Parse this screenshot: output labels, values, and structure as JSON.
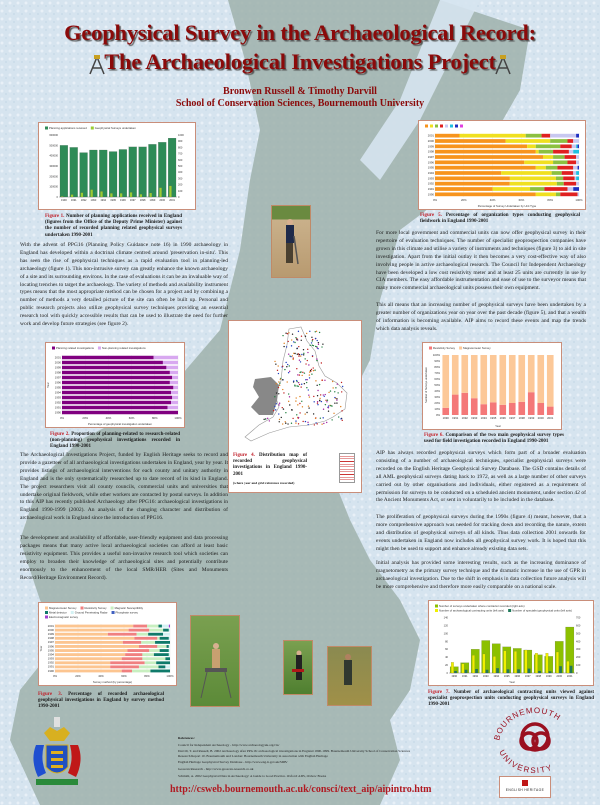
{
  "header": {
    "title_line1": "Geophysical Survey in the Archaeological Record:",
    "title_line2": "The Archaeological Investigations Project",
    "authors": "Bronwen Russell & Timothy Darvill",
    "affiliation": "School of Conservation Sciences, Bournemouth University"
  },
  "left_column": {
    "p1": "With the advent of PPG16 (Planning Policy Guidance note 16) in 1990 archaeology in England has developed within a doctrinal climate centred around 'preservation in-situ'. This has seen the rise of geophysical techniques as a rapid evaluation tool in planning-led archaeology (figure 1). This non-intrusive survey can greatly enhance the known archaeology of a site and its surrounding environs. In the case of evaluations it can be an invaluable way of locating trenches to target the archaeology. The variety of methods and availability instrument types means that the most appropriate method can be chosen for a project and by combining a number of methods a very detailed picture of the site can often be built up. Personal and public research projects also utilize geophysical survey techniques providing an essential research tool with quickly accessible results that can be used to illustrate the need for further work and develop future strategies (see figure 2).",
    "p2": "The Archaeological Investigations Project, funded by English Heritage seeks to record and provide a gazetteer of all archaeological investigations undertaken in England, year by year. It provides listings of archaeological interventions for each county and unitary authority in England and is the only systematically researched up to date record of its kind in England. The project researchers visit all county councils, commercial units and universities that undertake original fieldwork, while other workers are contacted by postal surveys. In addition to this AIP has recently published Archaeology after PPG16: archaeological investigations in England 1990-1999 (2002). An analysis of the changing character and distribution of archaeological work in England since the introduction of PPG16.",
    "p3": "The development and availability of affordable, user-friendly equipment and data processing packages means that many active local archaeological societies can afford at least basic resistivity equipment. This provides a useful non-invasive research tool which societies can employ to broaden their knowledge of archaeological sites and potentially contribute enormously to the enhancement of the local SMR/HER (Sites and Monuments Record/Heritage Environment Record)."
  },
  "right_column": {
    "p1": "For more local government and commercial units can now offer geophysical survey in their repertoire of evaluation techniques. The number of specialist geoprospection companies have grown in this climate and utilise a variety of instruments and techniques (figure 3) to aid in site investigation. Apart from the initial outlay it then becomes a very cost-effective way of also involving people in active archaeological research. The Council for Independent Archaeology have been developed a low cost resistivity meter and at least 25 units are currently in use by CIA members. The easy affordable instrumentation and ease of use to the surveyor means that many more commercial archaeological units possess their own equipment.",
    "p2": "This all means that an increasing number of geophysical surveys have been undertaken by a greater number of organizations year on year over the past decade (figure 5), and that a wealth of information is becoming available. AIP aims to record these events and map the trends which data analysis reveals.",
    "p3": "AIP has always recorded geophysical surveys which form part of a broader evaluation consisting of a number of archaeological techniques, specialist geophysical surveys were recorded on the English Heritage Geophysical Survey Database. The GSD contains details of all AML geophysical surveys dating back to 1972, as well as a large number of other surveys carried out by other organisations and individuals, either registered as a requirement of permission for surveys to be conducted on a scheduled ancient monument, under section 42 of the Ancient Monuments Act, or sent in voluntarily to be included in the database.",
    "p4": "The proliferation of geophysical surveys during the 1990s (figure 4) meant, however, that a more comprehensive approach was needed for tracking down and recording the nature, extent and distribution of geophysical surveys of all kinds. Thus data collection 2001 onwards for events undertaken in England now includes all geophysical survey work. It is hoped that this might then be used to support and enhance already existing data sets.",
    "p5": "Initial analysis has provided some interesting results, such as the increasing dominance of magnetometry as the primary survey technique and the dramatic increase in the use of GPR in archaeological investigation. Due to the shift in emphasis in data collection future analysis will be more comprehensive and therefore more easily comparable on a national scale."
  },
  "captions": {
    "fig1": {
      "label": "Figure 1.",
      "text": " Number of planning applications received in England (figures from the Office of the Deputy Prime Minister) against the number of recorded planning related geophysical surveys undertaken 1990-2001"
    },
    "fig2": {
      "label": "Figure 2.",
      "text": " Proportion of planning-related to research-related (non-planning) geophysical investigations recorded in England 1990-2001"
    },
    "fig3": {
      "label": "Figure 3.",
      "text": " Percentage of recorded archaeological geophysical investigations in England by survey method 1990-2001"
    },
    "fig4": {
      "label": "Figure 4.",
      "text": " Distribution map of recorded geophysical investigations in England 1990-2001",
      "note": "(where year and grid reference recorded)"
    },
    "fig5": {
      "label": "Figure 5.",
      "text": " Percentage of organization types conducting geophysical fieldwork in England 1990-2001"
    },
    "fig6": {
      "label": "Figure 6.",
      "text": " Comparison of the two main geophysical survey types used for field investigation recorded in England 1990-2001"
    },
    "fig7": {
      "label": "Figure 7.",
      "text": " Number of archaeological contracting units viewed against specialist geoprospection units conducting geophysical surveys in England 1990-2001"
    }
  },
  "references": {
    "heading": "References:",
    "items": [
      "Council for Independent Archaeology - http://www.archaeologyuk.org/cia/",
      "Darvill, T. and Russell, B. 2002 Archaeology after PPG16: archaeological investigations in England 1990-1999. Bournemouth University School of Conservation Sciences Research Report 10. Bournemouth and London: Bournemouth University in association with English Heritage",
      "English Heritage Geophysical Survey Database - http://www.eng-h.gov.uk/SDB/",
      "Geoscan Research - http://www.geoscan-research.co.uk",
      "Schmidt, A. 2002 Geophysical Data in Archaeology: A Guide to Good Practice. Oxford: ADS, Oxbow Books"
    ],
    "url": "http://csweb.bournemouth.ac.uk/consci/text_aip/aipintro.htm"
  },
  "logos": {
    "university": "BOURNEMOUTH UNIVERSITY",
    "heritage": "ENGLISH HERITAGE"
  },
  "colors": {
    "title": "#8b0a0a",
    "caption_label": "#c0202a",
    "figure_border": "#c98e7a"
  },
  "chart_data": [
    {
      "id": "fig1",
      "type": "bar",
      "categories": [
        "1990",
        "1991",
        "1992",
        "1993",
        "1994",
        "1995",
        "1996",
        "1997",
        "1998",
        "1999",
        "2000",
        "2001"
      ],
      "series": [
        {
          "name": "Planning applications received",
          "axis": "left",
          "color": "#2e8b57",
          "values": [
            500000,
            480000,
            430000,
            455000,
            455000,
            440000,
            460000,
            485000,
            485000,
            510000,
            530000,
            570000
          ]
        },
        {
          "name": "Geophysical Surveys undertaken",
          "axis": "right",
          "color": "#9acd32",
          "values": [
            10,
            40,
            70,
            120,
            90,
            60,
            60,
            75,
            45,
            65,
            150,
            180
          ]
        }
      ],
      "ylim": [
        0,
        600000
      ],
      "ytick_step": 100000,
      "ylim_right": [
        0,
        1000
      ],
      "ytick_step_right": 100,
      "legend": "top"
    },
    {
      "id": "fig2",
      "type": "bar",
      "orientation": "horizontal",
      "stacked_percent": true,
      "categories": [
        "1990",
        "1991",
        "1992",
        "1993",
        "1994",
        "1995",
        "1996",
        "1997",
        "1998",
        "1999",
        "2000",
        "2001"
      ],
      "series": [
        {
          "name": "Planning related investigations",
          "color": "#800080",
          "values": [
            100,
            91,
            94,
            95,
            94,
            96,
            93,
            95,
            93,
            90,
            87,
            79
          ]
        },
        {
          "name": "Non-planning related investigations",
          "color": "#d8a8f0",
          "values": [
            0,
            9,
            6,
            5,
            6,
            4,
            7,
            5,
            7,
            10,
            13,
            21
          ]
        }
      ],
      "xlabel": "Percentage of geophysical investigation undertaken",
      "ylabel": "Year",
      "legend": "top"
    },
    {
      "id": "fig3",
      "type": "bar",
      "orientation": "horizontal",
      "stacked_percent": true,
      "categories": [
        "1990",
        "1991",
        "1992",
        "1993",
        "1994",
        "1995",
        "1996",
        "1997",
        "1998",
        "1999",
        "2000",
        "2001"
      ],
      "series": [
        {
          "name": "Magnetometer Survey",
          "color": "#fcc590",
          "values": [
            58,
            48,
            48,
            58,
            61,
            63,
            73,
            59,
            69,
            46,
            64,
            68
          ]
        },
        {
          "name": "Resistivity Survey",
          "color": "#f08080",
          "values": [
            9,
            25,
            30,
            18,
            15,
            19,
            16,
            16,
            20,
            25,
            18,
            12
          ]
        },
        {
          "name": "Magnetic Susceptibility",
          "color": "#c8efc0",
          "values": [
            16,
            17,
            10,
            20,
            10,
            9,
            8,
            12,
            2,
            10,
            12,
            10
          ]
        },
        {
          "name": "Metal detector",
          "color": "#0f7a6a",
          "values": [
            17,
            6,
            12,
            4,
            13,
            8,
            2,
            13,
            8,
            13,
            5,
            3
          ]
        },
        {
          "name": "Ground Penetrating Radar",
          "color": "#d4f2f4",
          "values": [
            0,
            4,
            0,
            0,
            1,
            1,
            1,
            0,
            1,
            6,
            1,
            6
          ]
        },
        {
          "name": "Phosphate survey",
          "color": "#4060c0",
          "values": [
            0,
            0,
            0,
            0,
            0,
            0,
            0,
            0,
            0,
            0,
            0,
            0
          ]
        },
        {
          "name": "Electromagnetic survey",
          "color": "#a040d0",
          "values": [
            0,
            0,
            0,
            0,
            0,
            0,
            0,
            0,
            0,
            0,
            0,
            1
          ]
        }
      ],
      "xlabel": "Survey method (by percentage)",
      "ylabel": "Year",
      "legend": "top"
    },
    {
      "id": "fig5",
      "type": "bar",
      "orientation": "horizontal",
      "stacked_percent": true,
      "categories": [
        "1990",
        "1991",
        "1992",
        "1993",
        "1994",
        "1995",
        "1996",
        "1997",
        "1998",
        "1999",
        "2000",
        "2001"
      ],
      "series": [
        {
          "color": "#f7941d",
          "values": [
            70,
            40,
            54,
            52,
            46,
            70,
            62,
            75,
            70,
            64,
            49,
            17
          ]
        },
        {
          "color": "#f0e020",
          "values": [
            14,
            26,
            34,
            32,
            35,
            7,
            20,
            7,
            2,
            6,
            31,
            46
          ]
        },
        {
          "color": "#8cc040",
          "values": [
            3,
            10,
            5,
            5,
            7,
            8,
            10,
            8,
            10,
            17,
            12,
            11
          ]
        },
        {
          "color": "#e02020",
          "values": [
            12,
            16,
            9,
            8,
            8,
            11,
            6,
            8,
            11,
            8,
            4,
            6
          ]
        },
        {
          "color": "#c8c8f0",
          "values": [
            1,
            4,
            2,
            1,
            2,
            3,
            2,
            2,
            3,
            3,
            4,
            18
          ]
        },
        {
          "color": "#20c0e0",
          "values": [
            0,
            0,
            0,
            2,
            2,
            0,
            0,
            0,
            4,
            1,
            0,
            0
          ]
        },
        {
          "color": "#2030c0",
          "values": [
            0,
            4,
            0,
            0,
            0,
            1,
            0,
            0,
            0,
            1,
            0,
            2
          ]
        },
        {
          "color": "#e040e0",
          "values": [
            0,
            0,
            0,
            0,
            0,
            0,
            0,
            0,
            0,
            0,
            0,
            0
          ]
        }
      ],
      "xlabel": "Percentage of Survey Undertaken by Unit Type",
      "legend": "top"
    },
    {
      "id": "fig6",
      "type": "bar",
      "stacked_percent": true,
      "categories": [
        "1990",
        "1991",
        "1992",
        "1993",
        "1994",
        "1995",
        "1996",
        "1997",
        "1998",
        "1999",
        "2000",
        "2001"
      ],
      "series": [
        {
          "name": "Resistivity Survey",
          "color": "#f47878",
          "values": [
            12,
            34,
            37,
            28,
            18,
            21,
            17,
            20,
            22,
            38,
            20,
            14
          ]
        },
        {
          "name": "Magnetometer Survey",
          "color": "#fcc898",
          "values": [
            88,
            66,
            63,
            72,
            82,
            79,
            83,
            80,
            78,
            62,
            80,
            86
          ]
        }
      ],
      "xlabel": "Year",
      "ylabel": "Number of Surveys undertaken",
      "ytick_step": 10,
      "legend": "top"
    },
    {
      "id": "fig7",
      "type": "bar",
      "categories": [
        "1990",
        "1991",
        "1992",
        "1993",
        "1994",
        "1995",
        "1996",
        "1997",
        "1998",
        "1999",
        "2000",
        "2001"
      ],
      "series": [
        {
          "name": "Number of surveys undertaken where contractor recorded (right axis)",
          "axis": "right",
          "color": "#8cc000",
          "values": [
            80,
            130,
            300,
            410,
            370,
            330,
            310,
            290,
            230,
            210,
            400,
            580
          ]
        },
        {
          "name": "Number of archaeological contracting units (left axis)",
          "axis": "left",
          "color": "#f0f000",
          "values": [
            27,
            23,
            45,
            48,
            42,
            56,
            55,
            58,
            50,
            50,
            53,
            30
          ]
        },
        {
          "name": "Number of specialist geophysical units (left axis)",
          "axis": "left",
          "color": "#1f7a5a",
          "values": [
            5,
            8,
            10,
            8,
            12,
            9,
            9,
            11,
            5,
            4,
            17,
            18
          ]
        }
      ],
      "ylim": [
        0,
        140
      ],
      "ytick_step": 20,
      "ylim_right": [
        0,
        700
      ],
      "ytick_step_right": 100,
      "xlabel": "Year",
      "legend": "top"
    }
  ]
}
